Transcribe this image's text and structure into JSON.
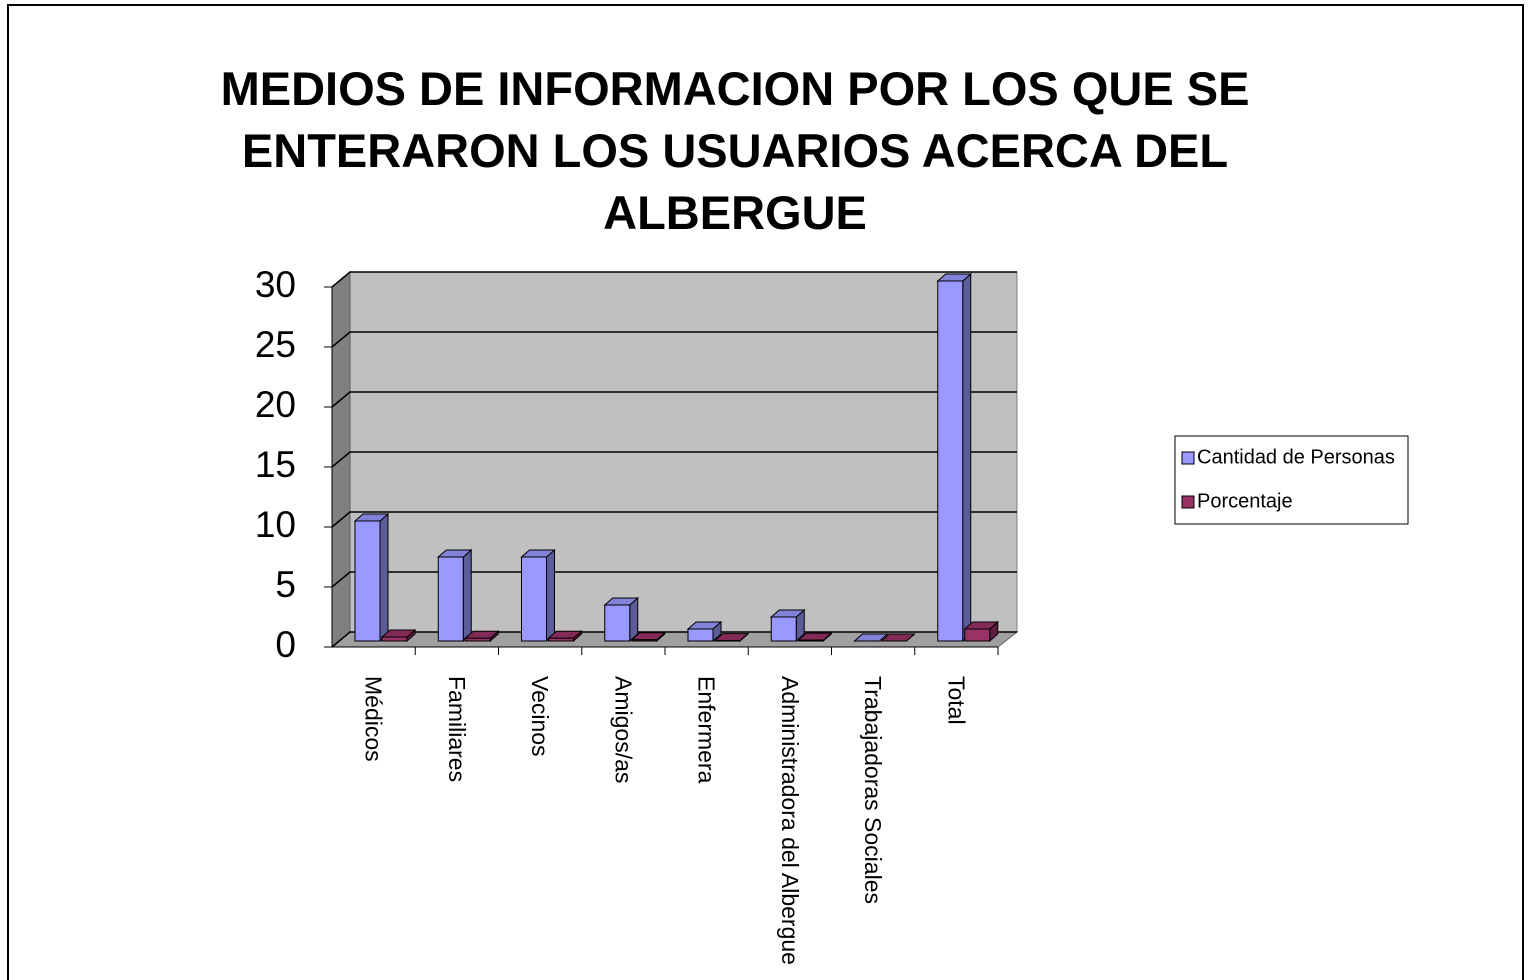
{
  "chart_data": {
    "type": "bar3d",
    "title": "MEDIOS DE INFORMACION POR LOS QUE SE ENTERARON LOS USUARIOS ACERCA DEL ALBERGUE",
    "categories": [
      "Médicos",
      "Familiares",
      "Vecinos",
      "Amigos/as",
      "Enfermera",
      "Administradora del Albergue",
      "Trabajadoras Sociales",
      "Total"
    ],
    "series": [
      {
        "name": "Cantidad de Personas",
        "color": "#9999ff",
        "values": [
          10,
          7,
          7,
          3,
          1,
          2,
          0,
          30
        ]
      },
      {
        "name": "Porcentaje",
        "color": "#993366",
        "values": [
          0.33,
          0.23,
          0.23,
          0.1,
          0.03,
          0.07,
          0,
          1
        ]
      }
    ],
    "ylim": [
      0,
      30
    ],
    "yticks": [
      0,
      5,
      10,
      15,
      20,
      25,
      30
    ],
    "grid": true,
    "legend": "right"
  }
}
